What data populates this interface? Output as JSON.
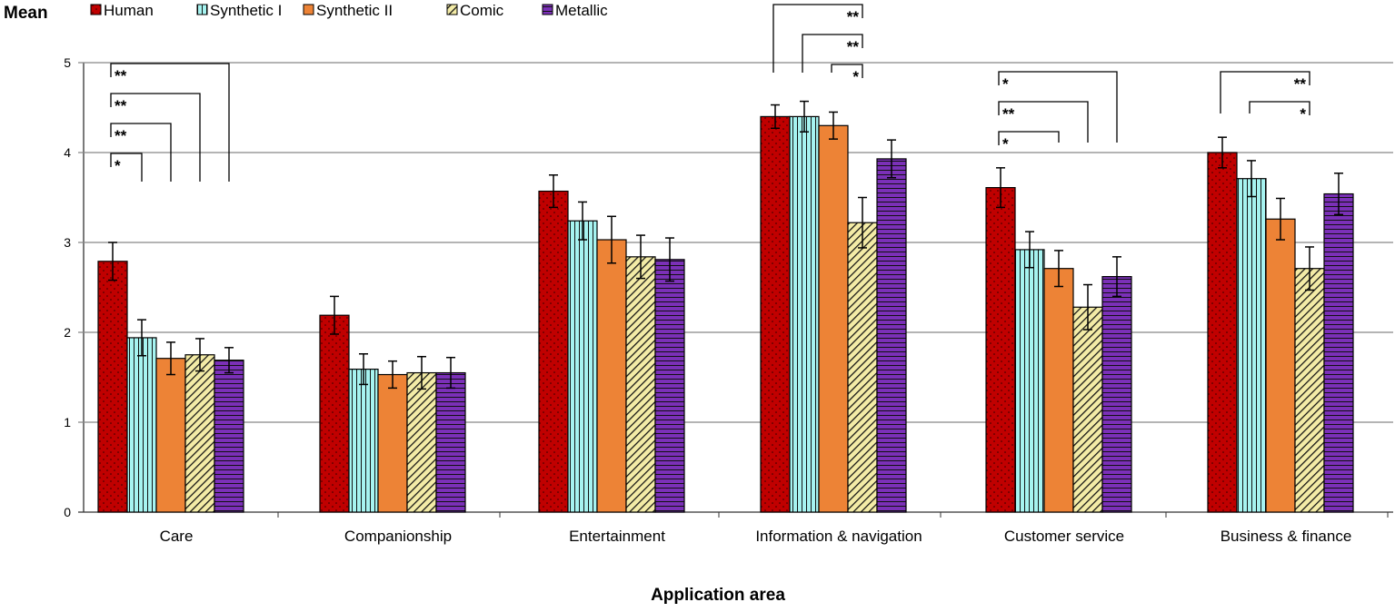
{
  "chart_data": {
    "type": "bar",
    "ylabel": "Mean",
    "xlabel": "Application area",
    "ylim": [
      0,
      5
    ],
    "yticks": [
      "0",
      "1",
      "2",
      "3",
      "4",
      "5"
    ],
    "grid": true,
    "legend_position": "top",
    "categories": [
      "Care",
      "Companionship",
      "Entertainment",
      "Information & navigation",
      "Customer service",
      "Business & finance"
    ],
    "series": [
      {
        "name": "Human",
        "color": "#c00000",
        "pattern": "dots",
        "values": [
          2.79,
          2.19,
          3.57,
          4.4,
          3.61,
          4.0
        ],
        "errors": [
          0.21,
          0.21,
          0.18,
          0.13,
          0.22,
          0.17
        ]
      },
      {
        "name": "Synthetic I",
        "color": "#a6f3f0",
        "pattern": "vertical",
        "values": [
          1.94,
          1.59,
          3.24,
          4.4,
          2.92,
          3.71
        ],
        "errors": [
          0.2,
          0.17,
          0.21,
          0.17,
          0.2,
          0.2
        ]
      },
      {
        "name": "Synthetic II",
        "color": "#ed8336",
        "pattern": "solid",
        "values": [
          1.71,
          1.53,
          3.03,
          4.3,
          2.71,
          3.26
        ],
        "errors": [
          0.18,
          0.15,
          0.26,
          0.15,
          0.2,
          0.23
        ]
      },
      {
        "name": "Comic",
        "color": "#f3eba6",
        "pattern": "diagonal",
        "values": [
          1.75,
          1.55,
          2.84,
          3.22,
          2.28,
          2.71
        ],
        "errors": [
          0.18,
          0.18,
          0.24,
          0.28,
          0.25,
          0.24
        ]
      },
      {
        "name": "Metallic",
        "color": "#7b30b8",
        "pattern": "horizontal",
        "values": [
          1.69,
          1.55,
          2.81,
          3.93,
          2.62,
          3.54
        ],
        "errors": [
          0.14,
          0.17,
          0.24,
          0.21,
          0.22,
          0.23
        ]
      }
    ],
    "comparisons": [
      {
        "category": "Care",
        "from": "Human",
        "to": "Metallic",
        "label": "**"
      },
      {
        "category": "Care",
        "from": "Human",
        "to": "Comic",
        "label": "**"
      },
      {
        "category": "Care",
        "from": "Human",
        "to": "Synthetic II",
        "label": "**"
      },
      {
        "category": "Care",
        "from": "Human",
        "to": "Synthetic I",
        "label": "*"
      },
      {
        "category": "Information & navigation",
        "from": "Human",
        "to": "Comic",
        "label": "**"
      },
      {
        "category": "Information & navigation",
        "from": "Synthetic I",
        "to": "Comic",
        "label": "**"
      },
      {
        "category": "Information & navigation",
        "from": "Synthetic II",
        "to": "Comic",
        "label": "*"
      },
      {
        "category": "Customer service",
        "from": "Human",
        "to": "Metallic",
        "label": "*"
      },
      {
        "category": "Customer service",
        "from": "Human",
        "to": "Comic",
        "label": "**"
      },
      {
        "category": "Customer service",
        "from": "Human",
        "to": "Synthetic II",
        "label": "*"
      },
      {
        "category": "Business & finance",
        "from": "Human",
        "to": "Comic",
        "label": "**"
      },
      {
        "category": "Business & finance",
        "from": "Synthetic I",
        "to": "Comic",
        "label": "*"
      }
    ]
  }
}
